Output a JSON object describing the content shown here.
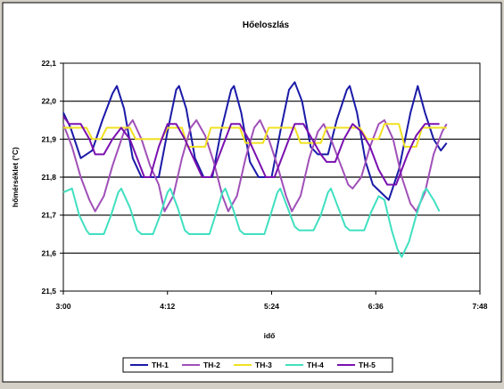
{
  "chart_data": {
    "type": "line",
    "title": "Hőeloszlás",
    "xlabel": "idő",
    "ylabel": "hőmérséklet (°C)",
    "ylim": [
      21.5,
      22.1
    ],
    "y_ticks": [
      "21,5",
      "21,6",
      "21,7",
      "21,8",
      "21,9",
      "22,0",
      "22,1"
    ],
    "x_ticks": [
      "3:00",
      "4:12",
      "5:24",
      "6:36",
      "7:48"
    ],
    "x_range_minutes": [
      180,
      468
    ],
    "grid": "horizontal",
    "legend_position": "bottom",
    "series": [
      {
        "name": "TH-1",
        "color": "#1a1aa8",
        "points": [
          [
            180,
            21.97
          ],
          [
            185,
            21.93
          ],
          [
            192,
            21.85
          ],
          [
            200,
            21.87
          ],
          [
            207,
            21.95
          ],
          [
            214,
            22.02
          ],
          [
            217,
            22.04
          ],
          [
            222,
            21.98
          ],
          [
            228,
            21.85
          ],
          [
            234,
            21.8
          ],
          [
            246,
            21.8
          ],
          [
            252,
            21.92
          ],
          [
            258,
            22.03
          ],
          [
            260,
            22.04
          ],
          [
            265,
            21.98
          ],
          [
            271,
            21.85
          ],
          [
            277,
            21.8
          ],
          [
            283,
            21.8
          ],
          [
            289,
            21.92
          ],
          [
            296,
            22.03
          ],
          [
            298,
            22.04
          ],
          [
            303,
            21.97
          ],
          [
            309,
            21.84
          ],
          [
            315,
            21.8
          ],
          [
            324,
            21.8
          ],
          [
            330,
            21.92
          ],
          [
            336,
            22.03
          ],
          [
            340,
            22.05
          ],
          [
            345,
            22.0
          ],
          [
            351,
            21.88
          ],
          [
            356,
            21.86
          ],
          [
            363,
            21.86
          ],
          [
            369,
            21.95
          ],
          [
            376,
            22.03
          ],
          [
            378,
            22.04
          ],
          [
            383,
            21.97
          ],
          [
            389,
            21.84
          ],
          [
            394,
            21.78
          ],
          [
            405,
            21.74
          ],
          [
            412,
            21.82
          ],
          [
            420,
            21.97
          ],
          [
            425,
            22.04
          ],
          [
            430,
            21.97
          ],
          [
            436,
            21.9
          ],
          [
            441,
            21.87
          ],
          [
            445,
            21.89
          ]
        ]
      },
      {
        "name": "TH-2",
        "color": "#a050b8",
        "points": [
          [
            180,
            21.94
          ],
          [
            186,
            21.88
          ],
          [
            192,
            21.8
          ],
          [
            198,
            21.74
          ],
          [
            202,
            21.71
          ],
          [
            208,
            21.75
          ],
          [
            214,
            21.83
          ],
          [
            222,
            21.92
          ],
          [
            228,
            21.95
          ],
          [
            234,
            21.9
          ],
          [
            240,
            21.83
          ],
          [
            246,
            21.78
          ],
          [
            250,
            21.71
          ],
          [
            256,
            21.75
          ],
          [
            262,
            21.85
          ],
          [
            268,
            21.93
          ],
          [
            272,
            21.95
          ],
          [
            278,
            21.91
          ],
          [
            284,
            21.84
          ],
          [
            290,
            21.75
          ],
          [
            294,
            21.71
          ],
          [
            300,
            21.75
          ],
          [
            306,
            21.85
          ],
          [
            312,
            21.93
          ],
          [
            316,
            21.95
          ],
          [
            322,
            21.9
          ],
          [
            328,
            21.83
          ],
          [
            334,
            21.75
          ],
          [
            338,
            21.71
          ],
          [
            344,
            21.75
          ],
          [
            350,
            21.85
          ],
          [
            356,
            21.92
          ],
          [
            360,
            21.94
          ],
          [
            366,
            21.89
          ],
          [
            372,
            21.83
          ],
          [
            377,
            21.78
          ],
          [
            380,
            21.77
          ],
          [
            386,
            21.8
          ],
          [
            392,
            21.88
          ],
          [
            398,
            21.94
          ],
          [
            402,
            21.95
          ],
          [
            408,
            21.9
          ],
          [
            414,
            21.8
          ],
          [
            420,
            21.73
          ],
          [
            424,
            21.71
          ],
          [
            430,
            21.76
          ],
          [
            436,
            21.86
          ],
          [
            442,
            21.92
          ],
          [
            445,
            21.94
          ]
        ]
      },
      {
        "name": "TH-3",
        "color": "#f0e020",
        "points": [
          [
            180,
            21.93
          ],
          [
            196,
            21.93
          ],
          [
            200,
            21.9
          ],
          [
            206,
            21.9
          ],
          [
            210,
            21.93
          ],
          [
            226,
            21.93
          ],
          [
            230,
            21.9
          ],
          [
            248,
            21.9
          ],
          [
            252,
            21.93
          ],
          [
            262,
            21.93
          ],
          [
            266,
            21.88
          ],
          [
            278,
            21.88
          ],
          [
            282,
            21.93
          ],
          [
            302,
            21.93
          ],
          [
            306,
            21.89
          ],
          [
            318,
            21.89
          ],
          [
            322,
            21.93
          ],
          [
            340,
            21.93
          ],
          [
            344,
            21.89
          ],
          [
            358,
            21.89
          ],
          [
            362,
            21.93
          ],
          [
            385,
            21.93
          ],
          [
            390,
            21.9
          ],
          [
            398,
            21.9
          ],
          [
            402,
            21.94
          ],
          [
            412,
            21.94
          ],
          [
            416,
            21.88
          ],
          [
            424,
            21.88
          ],
          [
            428,
            21.93
          ],
          [
            445,
            21.93
          ]
        ]
      },
      {
        "name": "TH-4",
        "color": "#40e0c0",
        "points": [
          [
            180,
            21.76
          ],
          [
            186,
            21.77
          ],
          [
            191,
            21.7
          ],
          [
            196,
            21.66
          ],
          [
            198,
            21.65
          ],
          [
            208,
            21.65
          ],
          [
            213,
            21.7
          ],
          [
            218,
            21.76
          ],
          [
            220,
            21.77
          ],
          [
            226,
            21.72
          ],
          [
            231,
            21.66
          ],
          [
            234,
            21.65
          ],
          [
            242,
            21.65
          ],
          [
            247,
            21.7
          ],
          [
            252,
            21.76
          ],
          [
            254,
            21.77
          ],
          [
            259,
            21.72
          ],
          [
            264,
            21.66
          ],
          [
            267,
            21.65
          ],
          [
            281,
            21.65
          ],
          [
            286,
            21.71
          ],
          [
            290,
            21.76
          ],
          [
            292,
            21.77
          ],
          [
            297,
            21.72
          ],
          [
            302,
            21.66
          ],
          [
            305,
            21.65
          ],
          [
            319,
            21.65
          ],
          [
            324,
            21.71
          ],
          [
            328,
            21.76
          ],
          [
            330,
            21.77
          ],
          [
            335,
            21.72
          ],
          [
            340,
            21.67
          ],
          [
            343,
            21.66
          ],
          [
            353,
            21.66
          ],
          [
            358,
            21.7
          ],
          [
            363,
            21.76
          ],
          [
            365,
            21.77
          ],
          [
            370,
            21.72
          ],
          [
            375,
            21.67
          ],
          [
            378,
            21.66
          ],
          [
            388,
            21.66
          ],
          [
            393,
            21.71
          ],
          [
            398,
            21.75
          ],
          [
            402,
            21.74
          ],
          [
            407,
            21.66
          ],
          [
            411,
            21.61
          ],
          [
            414,
            21.59
          ],
          [
            419,
            21.63
          ],
          [
            424,
            21.7
          ],
          [
            429,
            21.76
          ],
          [
            431,
            21.77
          ],
          [
            436,
            21.74
          ],
          [
            440,
            21.71
          ]
        ]
      },
      {
        "name": "TH-5",
        "color": "#7a10b0",
        "points": [
          [
            180,
            21.96
          ],
          [
            184,
            21.94
          ],
          [
            192,
            21.94
          ],
          [
            198,
            21.9
          ],
          [
            202,
            21.86
          ],
          [
            208,
            21.86
          ],
          [
            214,
            21.9
          ],
          [
            220,
            21.93
          ],
          [
            226,
            21.9
          ],
          [
            232,
            21.84
          ],
          [
            236,
            21.8
          ],
          [
            240,
            21.8
          ],
          [
            246,
            21.88
          ],
          [
            252,
            21.94
          ],
          [
            258,
            21.94
          ],
          [
            264,
            21.9
          ],
          [
            270,
            21.85
          ],
          [
            276,
            21.8
          ],
          [
            282,
            21.8
          ],
          [
            290,
            21.88
          ],
          [
            296,
            21.94
          ],
          [
            302,
            21.94
          ],
          [
            308,
            21.9
          ],
          [
            314,
            21.85
          ],
          [
            320,
            21.8
          ],
          [
            326,
            21.8
          ],
          [
            334,
            21.88
          ],
          [
            340,
            21.94
          ],
          [
            346,
            21.94
          ],
          [
            352,
            21.9
          ],
          [
            358,
            21.86
          ],
          [
            362,
            21.84
          ],
          [
            368,
            21.84
          ],
          [
            374,
            21.9
          ],
          [
            380,
            21.94
          ],
          [
            386,
            21.92
          ],
          [
            392,
            21.88
          ],
          [
            398,
            21.82
          ],
          [
            404,
            21.78
          ],
          [
            410,
            21.78
          ],
          [
            418,
            21.86
          ],
          [
            424,
            21.91
          ],
          [
            430,
            21.94
          ],
          [
            436,
            21.94
          ],
          [
            440,
            21.94
          ]
        ]
      }
    ]
  }
}
